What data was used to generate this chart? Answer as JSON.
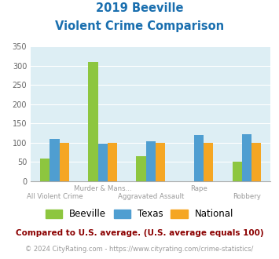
{
  "title_line1": "2019 Beeville",
  "title_line2": "Violent Crime Comparison",
  "title_color": "#1a6faf",
  "beeville": [
    60,
    310,
    65,
    0,
    50
  ],
  "texas": [
    110,
    97,
    105,
    120,
    122
  ],
  "national": [
    100,
    100,
    100,
    100,
    100
  ],
  "beeville_color": "#8dc63f",
  "texas_color": "#4f9ed1",
  "national_color": "#f5a623",
  "ylim": [
    0,
    350
  ],
  "yticks": [
    0,
    50,
    100,
    150,
    200,
    250,
    300,
    350
  ],
  "bg_color": "#ddeef4",
  "top_labels": [
    "",
    "Murder & Mans...",
    "",
    "Rape",
    ""
  ],
  "bot_labels": [
    "All Violent Crime",
    "",
    "Aggravated Assault",
    "",
    "Robbery"
  ],
  "footnote1": "Compared to U.S. average. (U.S. average equals 100)",
  "footnote2": "© 2024 CityRating.com - https://www.cityrating.com/crime-statistics/",
  "footnote1_color": "#8b0000",
  "footnote2_color": "#999999",
  "footnote2_link_color": "#4f9ed1",
  "legend_labels": [
    "Beeville",
    "Texas",
    "National"
  ]
}
